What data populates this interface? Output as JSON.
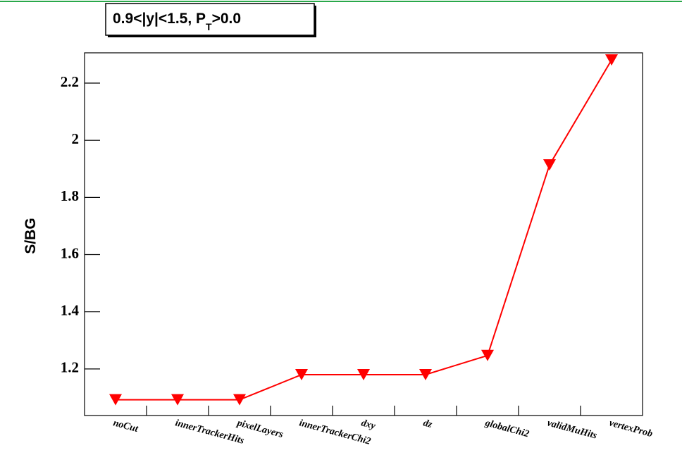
{
  "chart_data": {
    "type": "line",
    "title": {
      "main": "0.9<|y|<1.5, P",
      "sub": "T",
      "rest": ">0.0"
    },
    "ylabel": "S/BG",
    "categories": [
      "noCut",
      "innerTrackerHits",
      "pixelLayers",
      "innerTrackerChi2",
      "dxy",
      "dz",
      "globalChi2",
      "validMuHits",
      "vertexProb"
    ],
    "series": [
      {
        "name": "S/BG",
        "color": "#ff0000",
        "values": [
          1.092,
          1.092,
          1.092,
          1.18,
          1.18,
          1.18,
          1.247,
          1.914,
          2.281
        ]
      }
    ],
    "ylim": [
      1.037,
      2.306
    ],
    "yticks": [
      1.2,
      1.4,
      1.6,
      1.8,
      2,
      2.2
    ]
  }
}
